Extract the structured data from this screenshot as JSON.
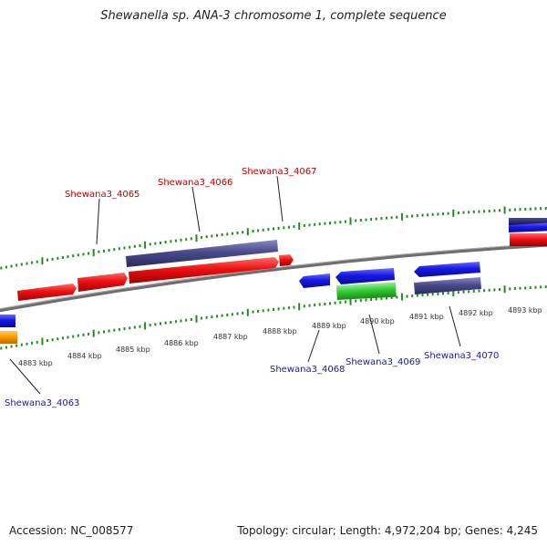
{
  "title": "Shewanella sp. ANA-3 chromosome 1, complete sequence",
  "footer": {
    "accession": "Accession: NC_008577",
    "summary": "Topology: circular; Length: 4,972,204 bp; Genes: 4,245"
  },
  "ticks": [
    "4883 kbp",
    "4884 kbp",
    "4885 kbp",
    "4886 kbp",
    "4887 kbp",
    "4888 kbp",
    "4889 kbp",
    "4890 kbp",
    "4891 kbp",
    "4892 kbp",
    "4893 kbp"
  ],
  "genes_forward": [
    "Shewana3_4065",
    "Shewana3_4066",
    "Shewana3_4067"
  ],
  "genes_reverse": [
    "Shewana3_4063",
    "Shewana3_4068",
    "Shewana3_4069",
    "Shewana3_4070"
  ],
  "colors": {
    "red": "#ee1111",
    "purple": "#4a4a8c",
    "blue": "#1818e8",
    "green": "#33cc33",
    "orange": "#ff9900",
    "navy": "#1a1a6e",
    "tick_green": "#228b22",
    "backbone": "#808080",
    "forward_label": "#c00000",
    "reverse_label": "#1a1aa8"
  }
}
